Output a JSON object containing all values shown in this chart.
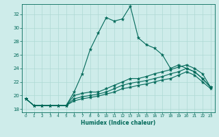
{
  "xlabel": "Humidex (Indice chaleur)",
  "bg_color": "#ceecea",
  "grid_color": "#aed8d4",
  "line_color": "#006858",
  "xlim": [
    -0.5,
    23.5
  ],
  "ylim": [
    17.5,
    33.5
  ],
  "yticks": [
    18,
    20,
    22,
    24,
    26,
    28,
    30,
    32
  ],
  "xticks": [
    0,
    1,
    2,
    3,
    4,
    5,
    6,
    7,
    8,
    9,
    10,
    11,
    12,
    13,
    14,
    15,
    16,
    17,
    18,
    19,
    20,
    21,
    22,
    23
  ],
  "line1_x": [
    0,
    1,
    2,
    3,
    4,
    5,
    6,
    7,
    8,
    9,
    10,
    11,
    12,
    13,
    14,
    15,
    16,
    17,
    18,
    19,
    20,
    21,
    22,
    23
  ],
  "line1_y": [
    19.5,
    18.5,
    18.5,
    18.5,
    18.5,
    18.5,
    20.5,
    23.2,
    26.8,
    29.2,
    31.5,
    31.0,
    31.3,
    33.2,
    28.5,
    27.5,
    27.0,
    26.0,
    24.0,
    24.5,
    24.0,
    23.5,
    22.5,
    21.2
  ],
  "line2_x": [
    0,
    1,
    2,
    3,
    4,
    5,
    6,
    7,
    8,
    9,
    10,
    11,
    12,
    13,
    14,
    15,
    16,
    17,
    18,
    19,
    20,
    21,
    22,
    23
  ],
  "line2_y": [
    19.5,
    18.5,
    18.5,
    18.5,
    18.5,
    18.5,
    20.0,
    20.3,
    20.5,
    20.5,
    21.0,
    21.5,
    22.0,
    22.5,
    22.5,
    22.8,
    23.2,
    23.5,
    23.8,
    24.2,
    24.5,
    24.0,
    23.2,
    21.2
  ],
  "line3_x": [
    0,
    1,
    2,
    3,
    4,
    5,
    6,
    7,
    8,
    9,
    10,
    11,
    12,
    13,
    14,
    15,
    16,
    17,
    18,
    19,
    20,
    21,
    22,
    23
  ],
  "line3_y": [
    19.5,
    18.5,
    18.5,
    18.5,
    18.5,
    18.5,
    19.5,
    19.8,
    20.0,
    20.2,
    20.5,
    21.0,
    21.5,
    21.8,
    22.0,
    22.2,
    22.5,
    22.8,
    23.2,
    23.5,
    24.0,
    23.5,
    22.5,
    21.2
  ],
  "line4_x": [
    0,
    1,
    2,
    3,
    4,
    5,
    6,
    7,
    8,
    9,
    10,
    11,
    12,
    13,
    14,
    15,
    16,
    17,
    18,
    19,
    20,
    21,
    22,
    23
  ],
  "line4_y": [
    19.5,
    18.5,
    18.5,
    18.5,
    18.5,
    18.5,
    19.2,
    19.5,
    19.7,
    19.9,
    20.2,
    20.5,
    21.0,
    21.2,
    21.5,
    21.7,
    22.0,
    22.3,
    22.5,
    23.0,
    23.5,
    23.0,
    22.0,
    21.0
  ]
}
